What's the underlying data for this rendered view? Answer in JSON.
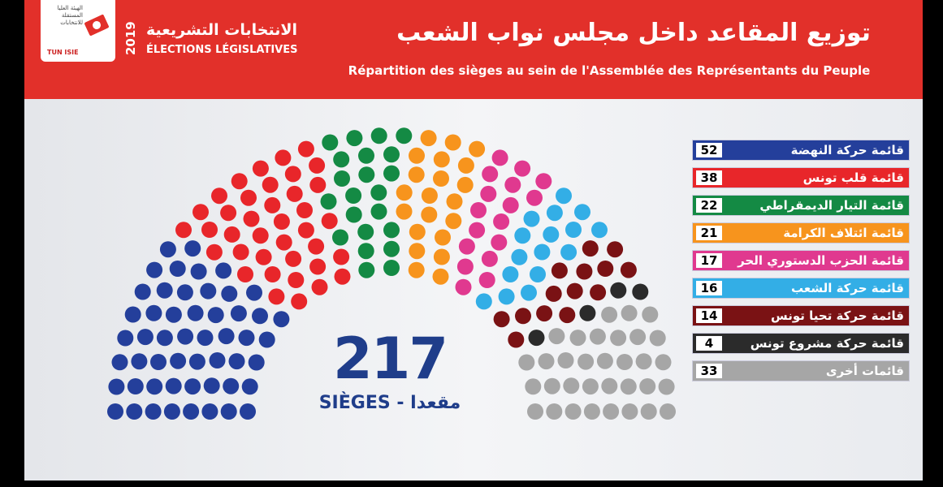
{
  "header": {
    "election_ar": "الانتخابات التشريعية",
    "election_fr": "ÉLECTIONS LÉGISLATIVES",
    "year": "2019",
    "title_ar": "توزيع المقاعد داخل مجلس نواب الشعب",
    "title_fr": "Répartition des sièges au sein de l'Assemblée des Représentants du Peuple",
    "logo_text": "الهيئة العليا المستقلة للانتخابات",
    "logo_abbr": "TUN ISIE"
  },
  "chart_data": {
    "type": "parliament",
    "total": "217",
    "total_label": "SIÈGES - مقعدا",
    "series": [
      {
        "name": "قائمة حركة النهضة",
        "value": 52,
        "color": "#243f9b"
      },
      {
        "name": "قائمة قلب تونس",
        "value": 38,
        "color": "#e8262a"
      },
      {
        "name": "قائمة التيار الديمقراطي",
        "value": 22,
        "color": "#148a44"
      },
      {
        "name": "قائمة ائتلاف الكرامة",
        "value": 21,
        "color": "#f7941d"
      },
      {
        "name": "قائمة الحزب الدستوري الحر",
        "value": 17,
        "color": "#e0398f"
      },
      {
        "name": "قائمة حركة الشعب",
        "value": 16,
        "color": "#33aee6"
      },
      {
        "name": "قائمة حركة تحيا تونس",
        "value": 14,
        "color": "#7a1214"
      },
      {
        "name": "قائمة حركة مشروع تونس",
        "value": 4,
        "color": "#2b2b2b"
      },
      {
        "name": "قائمات أخرى",
        "value": 33,
        "color": "#a6a6a6"
      }
    ]
  }
}
